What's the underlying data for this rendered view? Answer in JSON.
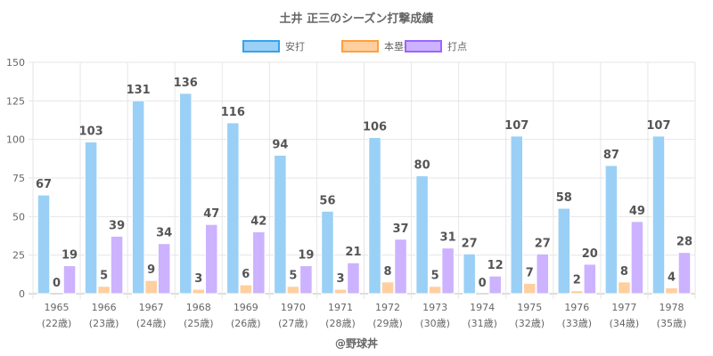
{
  "chart_data": {
    "type": "bar",
    "title": "土井 正三のシーズン打撃成績",
    "xlabel": "",
    "ylabel": "",
    "ylim": [
      0,
      150
    ],
    "yticks": [
      0,
      25,
      50,
      75,
      100,
      125,
      150
    ],
    "grid": true,
    "legend_position": "top",
    "categories": [
      "1965",
      "1966",
      "1967",
      "1968",
      "1969",
      "1970",
      "1971",
      "1972",
      "1973",
      "1974",
      "1975",
      "1976",
      "1977",
      "1978"
    ],
    "category_sublabels": [
      "(22歳)",
      "(23歳)",
      "(24歳)",
      "(25歳)",
      "(26歳)",
      "(27歳)",
      "(28歳)",
      "(29歳)",
      "(30歳)",
      "(31歳)",
      "(32歳)",
      "(33歳)",
      "(34歳)",
      "(35歳)"
    ],
    "series": [
      {
        "name": "安打",
        "color": "#9ad0f5",
        "border": "#36a2eb",
        "values": [
          67,
          103,
          131,
          136,
          116,
          94,
          56,
          106,
          80,
          27,
          107,
          58,
          87,
          107
        ]
      },
      {
        "name": "本塁打",
        "color": "#ffcf9f",
        "border": "#ff9f40",
        "values": [
          0,
          5,
          9,
          3,
          6,
          5,
          3,
          8,
          5,
          0,
          7,
          2,
          8,
          4
        ]
      },
      {
        "name": "打点",
        "color": "#ccb2ff",
        "border": "#9966ff",
        "values": [
          19,
          39,
          34,
          47,
          42,
          19,
          21,
          37,
          31,
          12,
          27,
          20,
          49,
          28
        ]
      }
    ]
  },
  "footer": "@野球丼"
}
